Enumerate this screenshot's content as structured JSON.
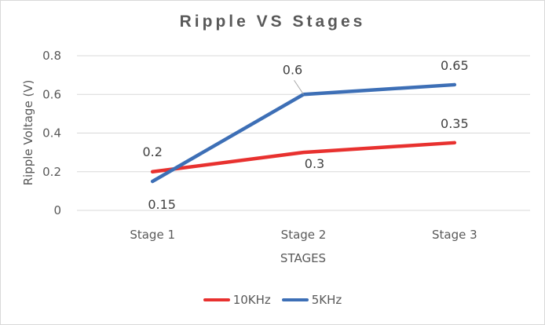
{
  "chart_data": {
    "type": "line",
    "title": "Ripple VS Stages",
    "xlabel": "STAGES",
    "ylabel": "Ripple Voltage (V)",
    "categories": [
      "Stage 1",
      "Stage 2",
      "Stage 3"
    ],
    "ylim": [
      0,
      0.8
    ],
    "yticks": [
      "0",
      "0.2",
      "0.4",
      "0.6",
      "0.8"
    ],
    "grid": true,
    "legend_position": "bottom",
    "series": [
      {
        "name": "10KHz",
        "color": "#e8312f",
        "values": [
          0.2,
          0.3,
          0.35
        ],
        "labels": [
          "0.2",
          "0.3",
          "0.35"
        ]
      },
      {
        "name": "5KHz",
        "color": "#3d6fb6",
        "values": [
          0.15,
          0.6,
          0.65
        ],
        "labels": [
          "0.15",
          "0.6",
          "0.65"
        ]
      }
    ]
  }
}
